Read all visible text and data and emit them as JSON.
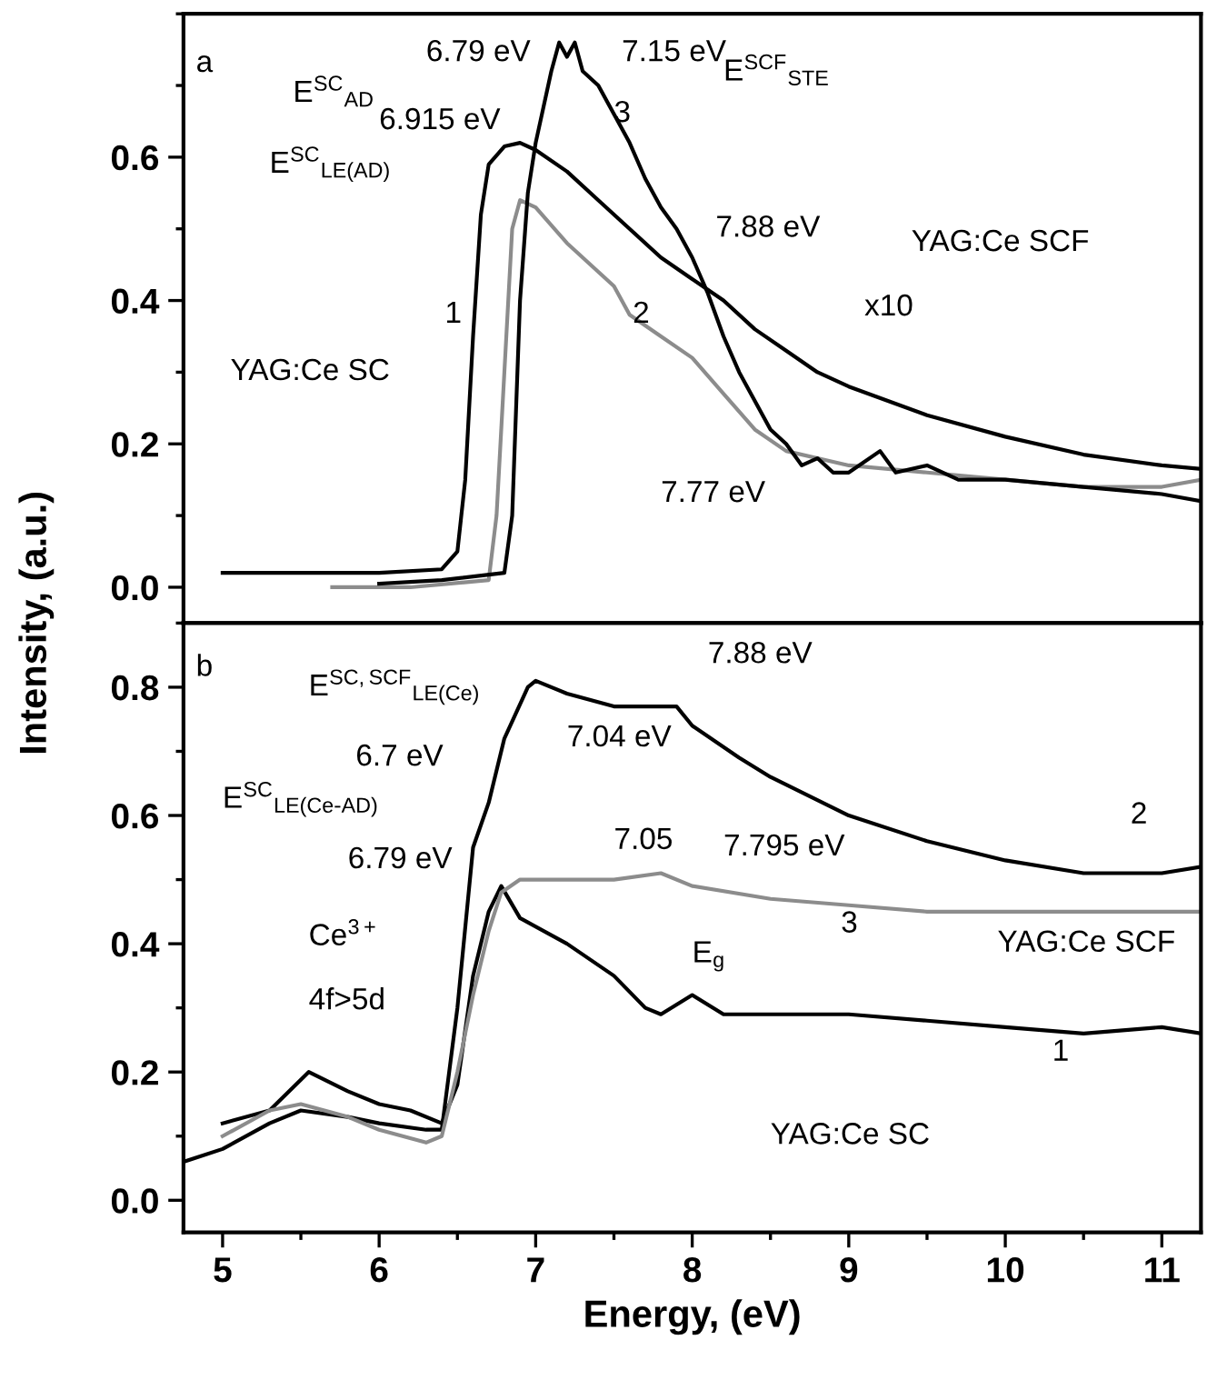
{
  "chart_data": [
    {
      "type": "line",
      "ylabel": "Intensity, (a.u.)",
      "xlim": [
        4.75,
        11.25
      ],
      "ylim": [
        -0.05,
        0.8
      ],
      "xticks": [
        5,
        6,
        7,
        8,
        9,
        10,
        11
      ],
      "yticks": [
        {
          "value": 0.0,
          "label": "0.0"
        },
        {
          "value": 0.2,
          "label": "0.2"
        },
        {
          "value": 0.4,
          "label": "0.4"
        },
        {
          "value": 0.6,
          "label": "0.6"
        }
      ],
      "tick_labels": "y",
      "grid": false,
      "legend": false,
      "series": [
        {
          "color": "#000000",
          "x": [
            5.0,
            5.5,
            6.0,
            6.4,
            6.5,
            6.55,
            6.6,
            6.65,
            6.7,
            6.8,
            6.9,
            7.0,
            7.2,
            7.4,
            7.6,
            7.8,
            8.0,
            8.2,
            8.4,
            8.6,
            8.8,
            9.0,
            9.5,
            10.0,
            10.5,
            11.0,
            11.25
          ],
          "values": [
            0.02,
            0.02,
            0.02,
            0.025,
            0.05,
            0.15,
            0.35,
            0.52,
            0.59,
            0.615,
            0.62,
            0.61,
            0.58,
            0.54,
            0.5,
            0.46,
            0.43,
            0.4,
            0.36,
            0.33,
            0.3,
            0.28,
            0.24,
            0.21,
            0.185,
            0.17,
            0.165
          ]
        },
        {
          "color": "#8c8c8c",
          "x": [
            5.7,
            6.2,
            6.7,
            6.75,
            6.8,
            6.85,
            6.9,
            7.0,
            7.2,
            7.4,
            7.5,
            7.6,
            7.8,
            8.0,
            8.2,
            8.4,
            8.6,
            9.0,
            9.5,
            10.0,
            10.5,
            11.0,
            11.25
          ],
          "values": [
            0.0,
            0.0,
            0.01,
            0.1,
            0.3,
            0.5,
            0.54,
            0.53,
            0.48,
            0.44,
            0.42,
            0.38,
            0.35,
            0.32,
            0.27,
            0.22,
            0.19,
            0.17,
            0.16,
            0.15,
            0.14,
            0.14,
            0.15
          ]
        },
        {
          "color": "#000000",
          "x": [
            6.0,
            6.4,
            6.8,
            6.85,
            6.9,
            6.95,
            7.0,
            7.1,
            7.15,
            7.2,
            7.25,
            7.3,
            7.4,
            7.5,
            7.6,
            7.7,
            7.8,
            7.9,
            8.0,
            8.1,
            8.2,
            8.3,
            8.4,
            8.5,
            8.6,
            8.7,
            8.8,
            8.9,
            9.0,
            9.2,
            9.3,
            9.5,
            9.7,
            10.0,
            10.5,
            11.0,
            11.25
          ],
          "values": [
            0.005,
            0.01,
            0.02,
            0.1,
            0.4,
            0.55,
            0.62,
            0.72,
            0.76,
            0.74,
            0.76,
            0.72,
            0.7,
            0.66,
            0.62,
            0.57,
            0.53,
            0.5,
            0.46,
            0.41,
            0.35,
            0.3,
            0.26,
            0.22,
            0.2,
            0.17,
            0.18,
            0.16,
            0.16,
            0.19,
            0.16,
            0.17,
            0.15,
            0.15,
            0.14,
            0.13,
            0.12
          ]
        }
      ],
      "annotations": [
        "a",
        "E$^{SC}$$_{AD}$",
        "6.79 eV",
        "6.915 eV",
        "E$^{SC}$$_{LE(AD)}$",
        "7.15 eV",
        "E$^{SCF}$$_{STE}$",
        "3",
        "1",
        "2",
        "7.88 eV",
        "YAG:Ce SCF",
        "x10",
        "YAG:Ce SC",
        "7.77 eV"
      ]
    },
    {
      "type": "line",
      "xlabel": "Energy, (eV)",
      "xlim": [
        4.75,
        11.25
      ],
      "ylim": [
        -0.05,
        0.9
      ],
      "xticks": [
        5,
        6,
        7,
        8,
        9,
        10,
        11
      ],
      "yticks": [
        {
          "value": 0.0,
          "label": "0.0"
        },
        {
          "value": 0.2,
          "label": "0.2"
        },
        {
          "value": 0.4,
          "label": "0.4"
        },
        {
          "value": 0.6,
          "label": "0.6"
        },
        {
          "value": 0.8,
          "label": "0.8"
        }
      ],
      "grid": false,
      "legend": false,
      "series": [
        {
          "color": "#000000",
          "x": [
            5.0,
            5.3,
            5.55,
            5.8,
            6.0,
            6.2,
            6.4,
            6.5,
            6.6,
            6.7,
            6.78,
            6.9,
            7.2,
            7.5,
            7.7,
            7.8,
            8.0,
            8.2,
            8.5,
            9.0,
            9.5,
            10.0,
            10.5,
            11.0,
            11.25
          ],
          "values": [
            0.12,
            0.14,
            0.2,
            0.17,
            0.15,
            0.14,
            0.12,
            0.18,
            0.35,
            0.45,
            0.49,
            0.44,
            0.4,
            0.35,
            0.3,
            0.29,
            0.32,
            0.29,
            0.29,
            0.29,
            0.28,
            0.27,
            0.26,
            0.27,
            0.26
          ]
        },
        {
          "color": "#000000",
          "x": [
            4.75,
            5.0,
            5.3,
            5.5,
            5.8,
            6.0,
            6.3,
            6.4,
            6.5,
            6.6,
            6.7,
            6.8,
            6.95,
            7.0,
            7.2,
            7.5,
            7.8,
            7.9,
            8.0,
            8.3,
            8.5,
            9.0,
            9.5,
            10.0,
            10.5,
            11.0,
            11.25
          ],
          "values": [
            0.06,
            0.08,
            0.12,
            0.14,
            0.13,
            0.12,
            0.11,
            0.11,
            0.3,
            0.55,
            0.62,
            0.72,
            0.8,
            0.81,
            0.79,
            0.77,
            0.77,
            0.77,
            0.74,
            0.69,
            0.66,
            0.6,
            0.56,
            0.53,
            0.51,
            0.51,
            0.52
          ]
        },
        {
          "color": "#8c8c8c",
          "x": [
            5.0,
            5.3,
            5.5,
            5.8,
            6.0,
            6.3,
            6.4,
            6.5,
            6.6,
            6.7,
            6.78,
            6.9,
            7.05,
            7.5,
            7.8,
            8.0,
            8.5,
            9.0,
            9.5,
            10.0,
            11.0,
            11.25
          ],
          "values": [
            0.1,
            0.14,
            0.15,
            0.13,
            0.11,
            0.09,
            0.1,
            0.2,
            0.32,
            0.42,
            0.48,
            0.5,
            0.5,
            0.5,
            0.51,
            0.49,
            0.47,
            0.46,
            0.45,
            0.45,
            0.45,
            0.45
          ]
        }
      ],
      "annotations": [
        "b",
        "E$^{SC,SCF}$$_{LE(Ce)}$",
        "7.88 eV",
        "7.04 eV",
        "E$^{SC}$$_{LE(Ce-AD)}$",
        "6.7 eV",
        "7.05",
        "7.795 eV",
        "6.79 eV",
        "Ce$^{3+}$",
        "4f>5d",
        "E$_{g}$",
        "2",
        "3",
        "1",
        "YAG:Ce SCF",
        "YAG:Ce SC"
      ]
    }
  ]
}
